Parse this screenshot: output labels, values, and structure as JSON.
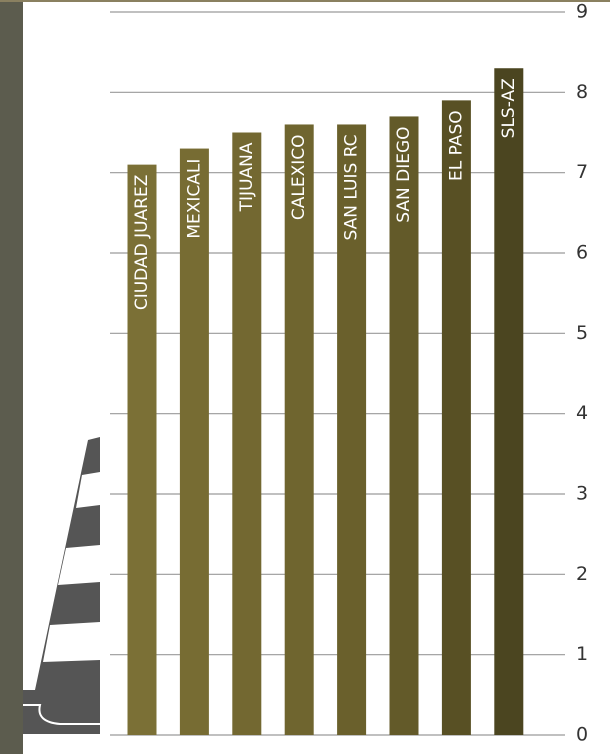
{
  "chart_data": {
    "type": "bar",
    "categories": [
      "CIUDAD JUAREZ",
      "MEXICALI",
      "TIJUANA",
      "CALEXICO",
      "SAN LUIS RC",
      "SAN DIEGO",
      "EL PASO",
      "SLS-AZ"
    ],
    "values": [
      7.1,
      7.3,
      7.5,
      7.6,
      7.6,
      7.7,
      7.9,
      8.3
    ],
    "colors": [
      "#7b7036",
      "#776c33",
      "#736831",
      "#6f652f",
      "#6a602c",
      "#635a29",
      "#585024",
      "#4b4520"
    ],
    "ylim": [
      0,
      9
    ],
    "yticks": [
      0,
      1,
      2,
      3,
      4,
      5,
      6,
      7,
      8,
      9
    ],
    "grid": true
  }
}
